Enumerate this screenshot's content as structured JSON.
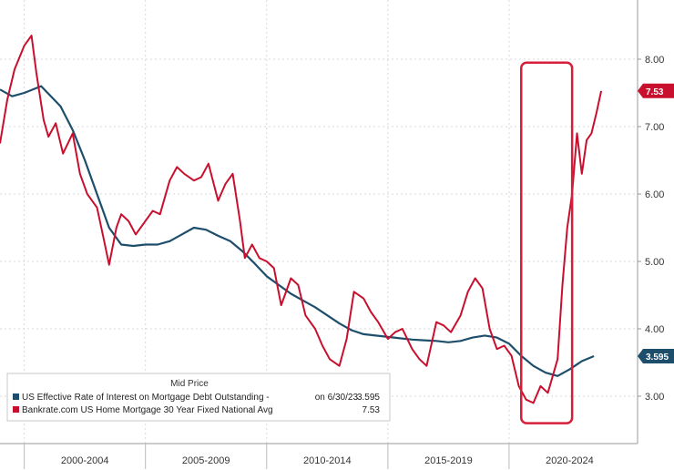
{
  "chart_data": {
    "type": "line",
    "title": "",
    "xlabel": "",
    "ylabel": "",
    "ylim": [
      2.5,
      8.5
    ],
    "y_ticks": [
      3.0,
      4.0,
      5.0,
      6.0,
      7.0,
      8.0
    ],
    "y_tick_labels": [
      "3.00",
      "4.00",
      "5.00",
      "6.00",
      "7.00",
      "8.00"
    ],
    "x_range": [
      1999.0,
      2025.3
    ],
    "x_period_labels": [
      "2000-2004",
      "2005-2009",
      "2010-2014",
      "2015-2019",
      "2020-2024"
    ],
    "x_period_centers": [
      2002.5,
      2007.5,
      2012.5,
      2017.5,
      2022.5
    ],
    "x_period_boundaries": [
      2000,
      2005,
      2010,
      2015,
      2020
    ],
    "grid": true,
    "legend": {
      "title": "Mid Price",
      "placement": "bottom-left",
      "entries": [
        {
          "label": "US Effective Rate of Interest on Mortgage Debt Outstanding -",
          "date": "on 6/30/23",
          "value": "3.595"
        },
        {
          "label": "Bankrate.com US Home Mortgage 30 Year Fixed National Avg",
          "date": "",
          "value": "7.53"
        }
      ]
    },
    "last_value_badges": [
      {
        "value": 7.53,
        "label": "7.53",
        "color": "#c8102e"
      },
      {
        "value": 3.595,
        "label": "3.595",
        "color": "#1d4e6b"
      }
    ],
    "highlight_box": {
      "x": [
        2020.5,
        2022.6
      ],
      "y": [
        2.6,
        7.95
      ],
      "color": "#d61f3a"
    },
    "series": [
      {
        "name": "US Effective Rate of Interest on Mortgage Debt Outstanding -",
        "color": "#1d4e6b",
        "x": [
          1999.0,
          1999.5,
          2000.0,
          2000.7,
          2001.5,
          2002.0,
          2002.5,
          2003.0,
          2003.5,
          2004.0,
          2004.5,
          2005.0,
          2005.5,
          2006.0,
          2006.5,
          2007.0,
          2007.5,
          2008.0,
          2008.5,
          2009.0,
          2009.5,
          2010.0,
          2010.5,
          2011.0,
          2011.5,
          2012.0,
          2012.5,
          2013.0,
          2013.5,
          2014.0,
          2014.5,
          2015.0,
          2015.5,
          2016.0,
          2016.5,
          2017.0,
          2017.5,
          2018.0,
          2018.5,
          2019.0,
          2019.5,
          2020.0,
          2020.5,
          2021.0,
          2021.5,
          2022.0,
          2022.5,
          2023.0,
          2023.5
        ],
        "y": [
          7.55,
          7.45,
          7.5,
          7.6,
          7.3,
          6.95,
          6.5,
          6.0,
          5.5,
          5.25,
          5.23,
          5.25,
          5.25,
          5.3,
          5.4,
          5.5,
          5.47,
          5.38,
          5.3,
          5.15,
          4.97,
          4.78,
          4.65,
          4.52,
          4.42,
          4.32,
          4.2,
          4.08,
          3.98,
          3.92,
          3.9,
          3.88,
          3.86,
          3.84,
          3.83,
          3.82,
          3.8,
          3.82,
          3.87,
          3.9,
          3.87,
          3.78,
          3.6,
          3.45,
          3.35,
          3.3,
          3.4,
          3.52,
          3.595
        ]
      },
      {
        "name": "Bankrate.com US Home Mortgage 30 Year Fixed National Avg",
        "color": "#c8102e",
        "x": [
          1999.0,
          1999.3,
          1999.6,
          2000.0,
          2000.3,
          2000.5,
          2000.8,
          2001.0,
          2001.3,
          2001.6,
          2002.0,
          2002.3,
          2002.6,
          2003.0,
          2003.3,
          2003.5,
          2003.8,
          2004.0,
          2004.3,
          2004.6,
          2005.0,
          2005.3,
          2005.6,
          2006.0,
          2006.3,
          2006.6,
          2007.0,
          2007.3,
          2007.6,
          2008.0,
          2008.3,
          2008.6,
          2008.9,
          2009.1,
          2009.4,
          2009.7,
          2010.0,
          2010.3,
          2010.6,
          2011.0,
          2011.3,
          2011.6,
          2012.0,
          2012.3,
          2012.6,
          2013.0,
          2013.3,
          2013.6,
          2014.0,
          2014.3,
          2014.6,
          2015.0,
          2015.3,
          2015.6,
          2016.0,
          2016.3,
          2016.6,
          2017.0,
          2017.3,
          2017.6,
          2018.0,
          2018.3,
          2018.6,
          2018.9,
          2019.2,
          2019.5,
          2019.8,
          2020.1,
          2020.4,
          2020.7,
          2021.0,
          2021.3,
          2021.6,
          2022.0,
          2022.2,
          2022.4,
          2022.6,
          2022.8,
          2023.0,
          2023.2,
          2023.4,
          2023.6,
          2023.8
        ],
        "y": [
          6.75,
          7.4,
          7.85,
          8.2,
          8.35,
          7.8,
          7.1,
          6.85,
          7.05,
          6.6,
          6.9,
          6.3,
          6.0,
          5.8,
          5.3,
          4.95,
          5.5,
          5.7,
          5.6,
          5.4,
          5.6,
          5.75,
          5.7,
          6.2,
          6.4,
          6.3,
          6.2,
          6.25,
          6.45,
          5.9,
          6.15,
          6.3,
          5.6,
          5.05,
          5.25,
          5.05,
          5.0,
          4.9,
          4.35,
          4.75,
          4.65,
          4.2,
          4.0,
          3.75,
          3.55,
          3.45,
          3.85,
          4.55,
          4.45,
          4.25,
          4.1,
          3.85,
          3.95,
          4.0,
          3.7,
          3.55,
          3.45,
          4.1,
          4.05,
          3.95,
          4.2,
          4.55,
          4.75,
          4.6,
          4.0,
          3.7,
          3.75,
          3.6,
          3.15,
          2.95,
          2.9,
          3.15,
          3.05,
          3.55,
          4.65,
          5.5,
          6.0,
          6.9,
          6.3,
          6.8,
          6.9,
          7.2,
          7.53
        ]
      }
    ]
  }
}
